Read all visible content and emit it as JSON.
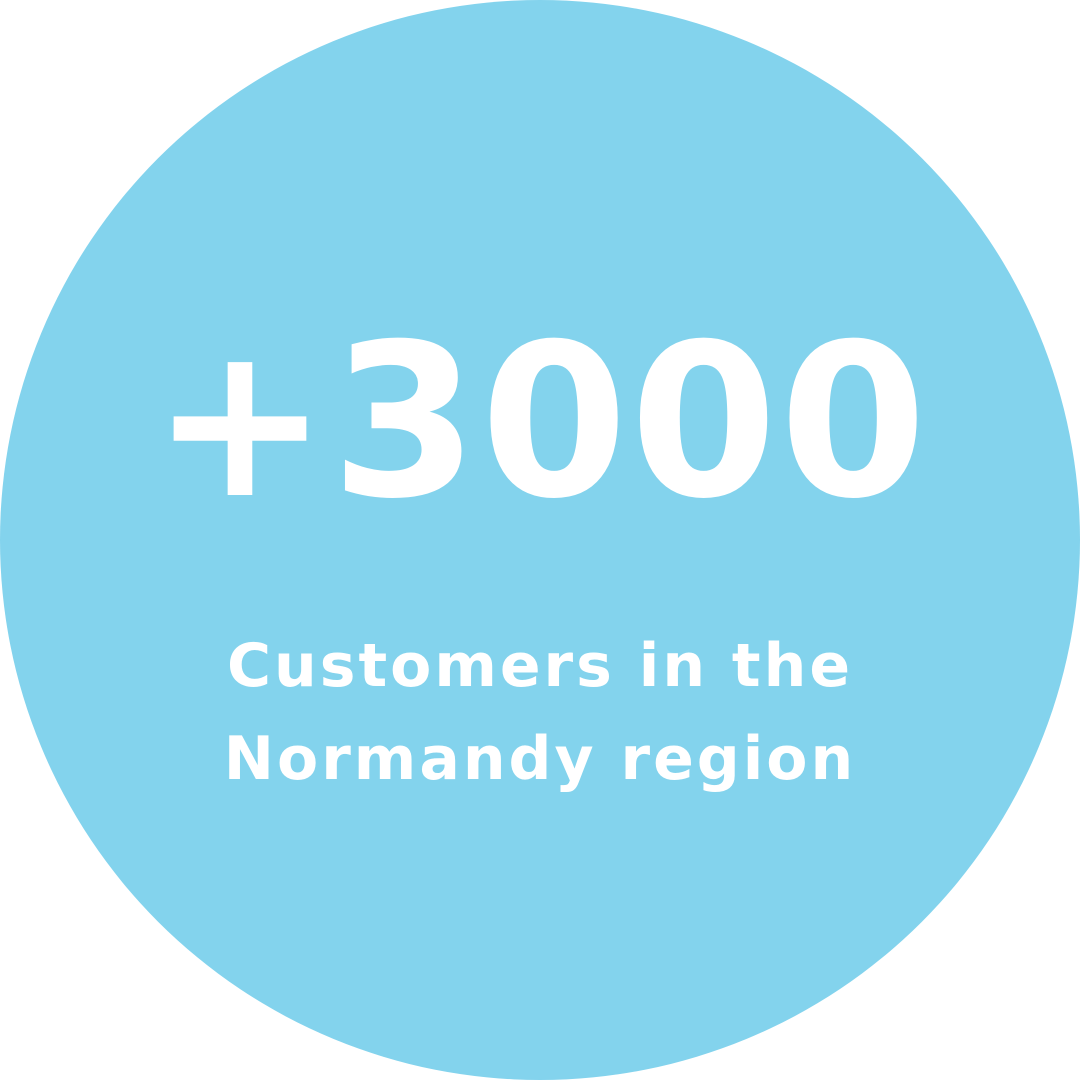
{
  "stat": {
    "value": "+3000",
    "caption_line_1": "Customers in the",
    "caption_line_2": "Normandy region"
  },
  "colors": {
    "circle": "#83d3ed",
    "text": "#ffffff",
    "background": "#ffffff"
  }
}
